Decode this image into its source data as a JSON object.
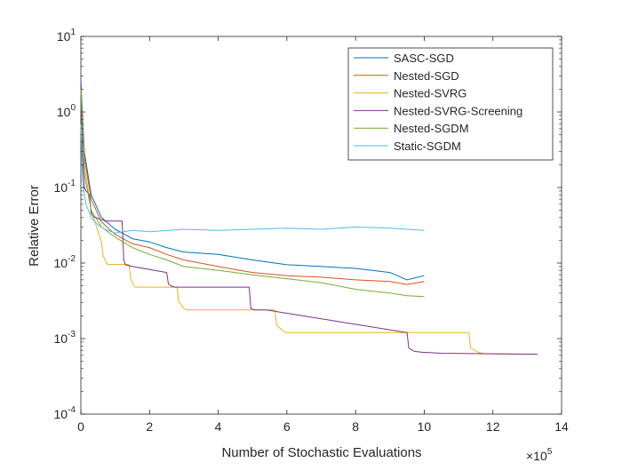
{
  "chart_data": {
    "type": "line",
    "title": "",
    "xlabel": "Number of Stochastic Evaluations",
    "ylabel": "Relative Error",
    "x_exponent_label": "×10",
    "x_exponent_power": "5",
    "x_scale": 100000,
    "xlim": [
      0,
      1400000
    ],
    "ylim": [
      0.0001,
      10
    ],
    "yscale": "log",
    "x_ticks": [
      0,
      200000,
      400000,
      600000,
      800000,
      1000000,
      1200000,
      1400000
    ],
    "x_tick_labels": [
      "0",
      "2",
      "4",
      "6",
      "8",
      "10",
      "12",
      "14"
    ],
    "y_ticks": [
      0.0001,
      0.001,
      0.01,
      0.1,
      1,
      10
    ],
    "y_tick_bases": [
      "10",
      "10",
      "10",
      "10",
      "10",
      "10"
    ],
    "y_tick_exponents": [
      "-4",
      "-3",
      "-2",
      "-1",
      "0",
      "1"
    ],
    "grid": false,
    "legend_position": "top-right",
    "series": [
      {
        "name": "SASC-SGD",
        "color": "#0072BD",
        "x": [
          0,
          10000,
          30000,
          60000,
          100000,
          150000,
          200000,
          250000,
          300000,
          400000,
          500000,
          600000,
          700000,
          800000,
          900000,
          950000,
          1000000
        ],
        "y": [
          2.5,
          0.3,
          0.08,
          0.04,
          0.028,
          0.021,
          0.019,
          0.016,
          0.014,
          0.013,
          0.011,
          0.0095,
          0.009,
          0.0085,
          0.0075,
          0.006,
          0.0068
        ]
      },
      {
        "name": "Nested-SGD",
        "color": "#D95319",
        "x": [
          0,
          10000,
          30000,
          60000,
          100000,
          150000,
          200000,
          250000,
          300000,
          400000,
          500000,
          600000,
          700000,
          800000,
          900000,
          950000,
          1000000
        ],
        "y": [
          2.0,
          0.25,
          0.07,
          0.035,
          0.024,
          0.018,
          0.016,
          0.013,
          0.011,
          0.009,
          0.0075,
          0.0068,
          0.0065,
          0.006,
          0.0057,
          0.0052,
          0.0057
        ]
      },
      {
        "name": "Nested-SVRG",
        "color": "#EDB120",
        "x": [
          0,
          10000,
          30000,
          60000,
          65000,
          75000,
          80000,
          140000,
          145000,
          155000,
          160000,
          280000,
          285000,
          300000,
          310000,
          565000,
          570000,
          590000,
          600000,
          1130000,
          1135000,
          1160000,
          1180000,
          1330000
        ],
        "y": [
          2.0,
          0.2,
          0.05,
          0.019,
          0.0125,
          0.0098,
          0.0096,
          0.0096,
          0.0063,
          0.0049,
          0.0048,
          0.0048,
          0.0031,
          0.0025,
          0.0024,
          0.0024,
          0.0015,
          0.00125,
          0.0012,
          0.0012,
          0.00075,
          0.00065,
          0.00063,
          0.00062
        ]
      },
      {
        "name": "Nested-SVRG-Screening",
        "color": "#7E2F8E",
        "x": [
          0,
          5000,
          10000,
          15000,
          20000,
          25000,
          30000,
          35000,
          40000,
          45000,
          50000,
          55000,
          65000,
          70000,
          75000,
          80000,
          120000,
          125000,
          130000,
          140000,
          150000,
          250000,
          255000,
          265000,
          275000,
          290000,
          490000,
          495000,
          505000,
          520000,
          540000,
          950000,
          955000,
          970000,
          990000,
          1050000,
          1330000
        ],
        "y": [
          2.5,
          0.25,
          0.1,
          0.09,
          0.085,
          0.08,
          0.045,
          0.042,
          0.04,
          0.04,
          0.039,
          0.038,
          0.037,
          0.036,
          0.036,
          0.036,
          0.036,
          0.011,
          0.0095,
          0.0092,
          0.009,
          0.0075,
          0.0053,
          0.0049,
          0.0048,
          0.0048,
          0.0048,
          0.0025,
          0.0024,
          0.0024,
          0.0024,
          0.0012,
          0.00075,
          0.00068,
          0.00066,
          0.00064,
          0.00062
        ]
      },
      {
        "name": "Nested-SGDM",
        "color": "#77AC30",
        "x": [
          0,
          10000,
          30000,
          60000,
          100000,
          150000,
          200000,
          250000,
          300000,
          400000,
          500000,
          600000,
          700000,
          800000,
          900000,
          950000,
          1000000
        ],
        "y": [
          2.0,
          0.15,
          0.05,
          0.03,
          0.022,
          0.016,
          0.013,
          0.011,
          0.009,
          0.008,
          0.007,
          0.0062,
          0.0055,
          0.0045,
          0.004,
          0.0037,
          0.0036
        ]
      },
      {
        "name": "Static-SGDM",
        "color": "#4DBEEE",
        "x": [
          0,
          5000,
          15000,
          30000,
          50000,
          70000,
          100000,
          150000,
          200000,
          300000,
          400000,
          500000,
          600000,
          700000,
          800000,
          900000,
          950000,
          1000000
        ],
        "y": [
          0.7,
          0.12,
          0.06,
          0.04,
          0.032,
          0.028,
          0.025,
          0.027,
          0.026,
          0.028,
          0.027,
          0.028,
          0.029,
          0.028,
          0.03,
          0.029,
          0.028,
          0.027
        ]
      }
    ]
  }
}
